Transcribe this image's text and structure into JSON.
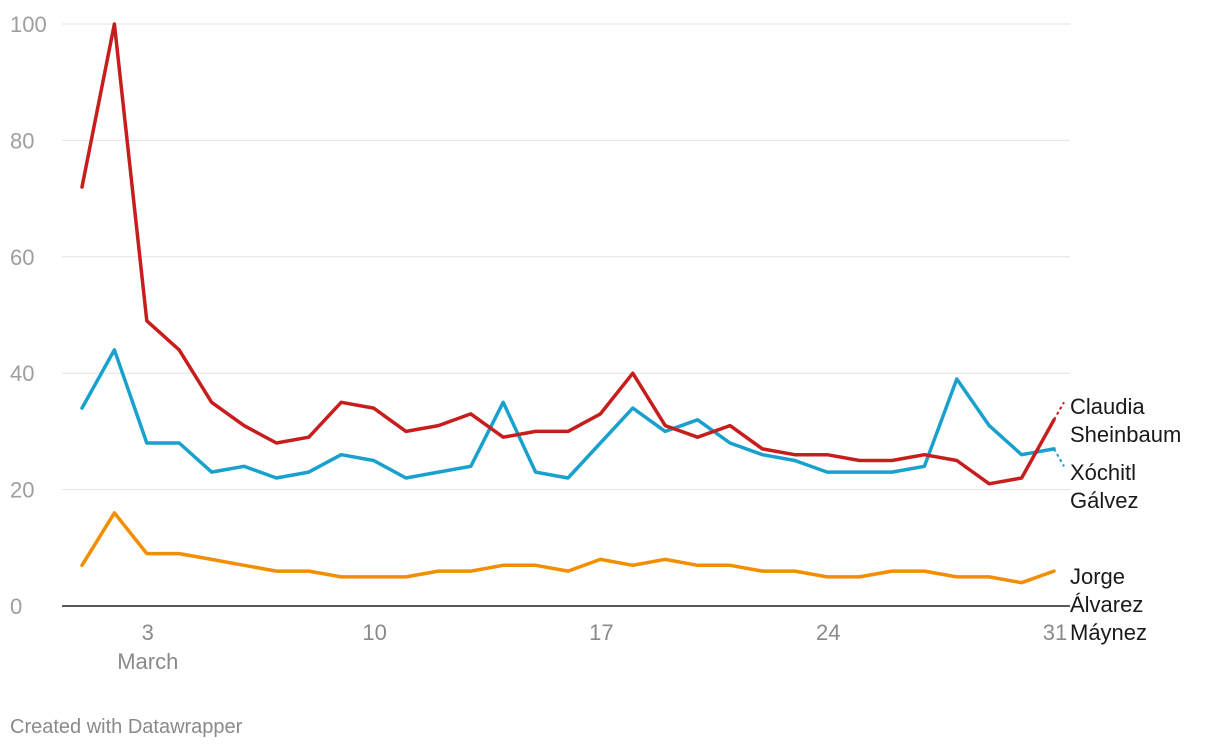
{
  "chart_data": {
    "type": "line",
    "x": [
      "2024-03-01",
      "2024-03-02",
      "2024-03-03",
      "2024-03-04",
      "2024-03-05",
      "2024-03-06",
      "2024-03-07",
      "2024-03-08",
      "2024-03-09",
      "2024-03-10",
      "2024-03-11",
      "2024-03-12",
      "2024-03-13",
      "2024-03-14",
      "2024-03-15",
      "2024-03-16",
      "2024-03-17",
      "2024-03-18",
      "2024-03-19",
      "2024-03-20",
      "2024-03-21",
      "2024-03-22",
      "2024-03-23",
      "2024-03-24",
      "2024-03-25",
      "2024-03-26",
      "2024-03-27",
      "2024-03-28",
      "2024-03-29",
      "2024-03-30",
      "2024-03-31"
    ],
    "x_tick_labels": [
      {
        "date": "2024-03-03",
        "label": "3",
        "sublabel": "March"
      },
      {
        "date": "2024-03-10",
        "label": "10"
      },
      {
        "date": "2024-03-17",
        "label": "17"
      },
      {
        "date": "2024-03-24",
        "label": "24"
      },
      {
        "date": "2024-03-31",
        "label": "31"
      }
    ],
    "ylim": [
      0,
      100
    ],
    "y_ticks": [
      0,
      20,
      40,
      60,
      80,
      100
    ],
    "grid": true,
    "legend": "direct labels at right end of lines",
    "series": [
      {
        "name": "Claudia Sheinbaum",
        "label_lines": [
          "Claudia",
          "Sheinbaum"
        ],
        "color": "#c71e1d",
        "values": [
          72,
          100,
          49,
          44,
          35,
          31,
          28,
          29,
          35,
          34,
          30,
          31,
          33,
          29,
          30,
          30,
          33,
          40,
          31,
          29,
          31,
          27,
          26,
          26,
          25,
          25,
          26,
          25,
          21,
          22,
          32
        ],
        "projected_end": 35
      },
      {
        "name": "Xóchitl Gálvez",
        "label_lines": [
          "Xóchitl",
          "Gálvez"
        ],
        "color": "#18a1cd",
        "values": [
          34,
          44,
          28,
          28,
          23,
          24,
          22,
          23,
          26,
          25,
          22,
          23,
          24,
          35,
          23,
          22,
          28,
          34,
          30,
          32,
          28,
          26,
          25,
          23,
          23,
          23,
          24,
          39,
          31,
          26,
          27
        ],
        "projected_end": 24
      },
      {
        "name": "Jorge Álvarez Máynez",
        "label_lines": [
          "Jorge",
          "Álvarez",
          "Máynez"
        ],
        "color": "#f28e00",
        "values": [
          7,
          16,
          9,
          9,
          8,
          7,
          6,
          6,
          5,
          5,
          5,
          6,
          6,
          7,
          7,
          6,
          8,
          7,
          8,
          7,
          7,
          6,
          6,
          5,
          5,
          6,
          6,
          5,
          5,
          4,
          6
        ]
      }
    ]
  },
  "credit": "Created with Datawrapper"
}
